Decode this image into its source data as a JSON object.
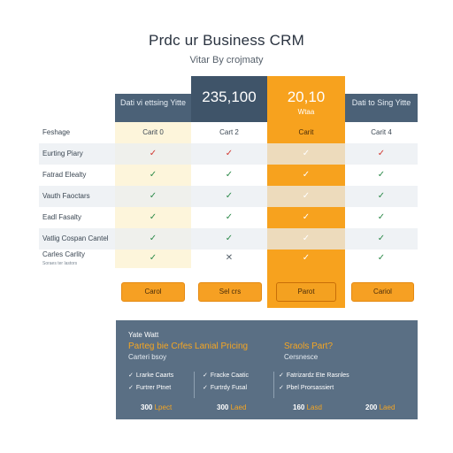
{
  "header": {
    "title": "Prdc ur Business CRM",
    "subtitle": "Vitar By crojmaty"
  },
  "plans": [
    {
      "name": "Dati vi ettsing Yitte",
      "plan_label": "Carit 0"
    },
    {
      "price": "235,100",
      "plan_label": "Cart 2"
    },
    {
      "price": "20,10",
      "sub": "Wtaa",
      "plan_label": "Carit"
    },
    {
      "name": "Dati to Sing Yitte",
      "plan_label": "Carit 4"
    }
  ],
  "rows": [
    {
      "label": "Feshage",
      "is_plan_row": true
    },
    {
      "label": "Eurting Piary",
      "marks": [
        "✓r",
        "✓r",
        "✓w",
        "✓r"
      ]
    },
    {
      "label": "Fatrad Elealty",
      "marks": [
        "✓g",
        "✓g",
        "✓w",
        "✓g"
      ]
    },
    {
      "label": "Vauth Faoctars",
      "marks": [
        "✓g",
        "✓g",
        "✓w",
        "✓g"
      ]
    },
    {
      "label": "Eadl Fasalty",
      "marks": [
        "✓g",
        "✓g",
        "✓w",
        "✓g"
      ]
    },
    {
      "label": "Vatlig Cospan Cantel",
      "marks": [
        "✓g",
        "✓g",
        "✓w",
        "✓g"
      ]
    },
    {
      "label": "Carles Carlity",
      "label_small": "Soraes ter lastors",
      "marks": [
        "✓g",
        "✕",
        "✓w",
        "✓g"
      ]
    }
  ],
  "buttons": [
    "Carol",
    "Sel crs",
    "Parot",
    "Cariol"
  ],
  "panel": {
    "head": "Yate Watt",
    "title": "Parteg bie Crfes Lanial Pricing",
    "sub": "Carteri bsoy",
    "head_right": "Sraols Part?",
    "sub_right": "Cersnesce",
    "features": [
      [
        "Lrarke Caarts",
        "Furtrer Ptnet"
      ],
      [
        "Fracke Caatic",
        "Furtrdy Fusal"
      ],
      [
        "Fatrizardz Ete Rasnles",
        "Pbel Prorsassiert"
      ]
    ],
    "prices": [
      {
        "num": "300",
        "unit": "Lpect"
      },
      {
        "num": "300",
        "unit": "Laed"
      },
      {
        "num": "160",
        "unit": "Lasd"
      },
      {
        "num": "200",
        "unit": "Laed"
      }
    ]
  },
  "colors": {
    "accent": "#f7a21e",
    "header": "#4b6177",
    "panel": "#5a6f84",
    "check": "#2d8a4a",
    "cross": "#d23a33"
  }
}
